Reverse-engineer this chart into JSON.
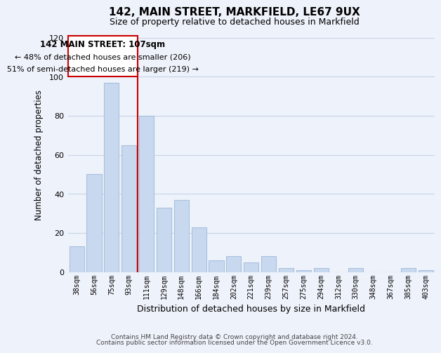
{
  "title1": "142, MAIN STREET, MARKFIELD, LE67 9UX",
  "title2": "Size of property relative to detached houses in Markfield",
  "xlabel": "Distribution of detached houses by size in Markfield",
  "ylabel": "Number of detached properties",
  "bar_color": "#c8d9ef",
  "bar_edge_color": "#a8c0de",
  "categories": [
    "38sqm",
    "56sqm",
    "75sqm",
    "93sqm",
    "111sqm",
    "129sqm",
    "148sqm",
    "166sqm",
    "184sqm",
    "202sqm",
    "221sqm",
    "239sqm",
    "257sqm",
    "275sqm",
    "294sqm",
    "312sqm",
    "330sqm",
    "348sqm",
    "367sqm",
    "385sqm",
    "403sqm"
  ],
  "values": [
    13,
    50,
    97,
    65,
    80,
    33,
    37,
    23,
    6,
    8,
    5,
    8,
    2,
    1,
    2,
    0,
    2,
    0,
    0,
    2,
    1
  ],
  "ylim": [
    0,
    120
  ],
  "yticks": [
    0,
    20,
    40,
    60,
    80,
    100,
    120
  ],
  "vline_color": "#cc0000",
  "annotation_title": "142 MAIN STREET: 107sqm",
  "annotation_line1": "← 48% of detached houses are smaller (206)",
  "annotation_line2": "51% of semi-detached houses are larger (219) →",
  "annotation_box_color": "#ffffff",
  "annotation_box_edge": "#cc0000",
  "grid_color": "#c8d4e8",
  "footer1": "Contains HM Land Registry data © Crown copyright and database right 2024.",
  "footer2": "Contains public sector information licensed under the Open Government Licence v3.0.",
  "bg_color": "#eef2fa"
}
